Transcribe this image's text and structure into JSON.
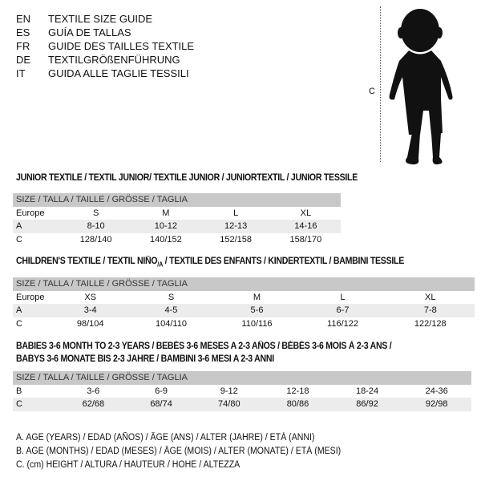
{
  "languages": [
    {
      "code": "EN",
      "label": "TEXTILE SIZE GUIDE"
    },
    {
      "code": "ES",
      "label": "GUÍA DE TALLAS"
    },
    {
      "code": "FR",
      "label": "GUIDE DES TAILLES TEXTILE"
    },
    {
      "code": "DE",
      "label": "TEXTILGRÖßENFÜHRUNG"
    },
    {
      "code": "IT",
      "label": "GUIDA ALLE TAGLIE TESSILI"
    }
  ],
  "figure": {
    "measure_label": "C",
    "icon": "child-silhouette-icon"
  },
  "size_header": "SIZE / TALLA / TAILLE / GRÖSSE / TAGLIA",
  "junior": {
    "title": "JUNIOR TEXTILE / TEXTIL JUNIOR/ TEXTILE JUNIOR / JUNIORTEXTIL / JUNIOR TESSILE",
    "rows": [
      [
        "Europe",
        "S",
        "M",
        "L",
        "XL"
      ],
      [
        "A",
        "8-10",
        "10-12",
        "12-13",
        "14-16"
      ],
      [
        "C",
        "128/140",
        "140/152",
        "152/158",
        "158/170"
      ]
    ]
  },
  "children": {
    "title_a": "CHILDREN'S TEXTILE / TEXTIL NIÑO",
    "title_sub": "/A",
    "title_b": " / TEXTILE DES ENFANTS / KINDERTEXTIL / BAMBINI TESSILE",
    "rows": [
      [
        "Europe",
        "XS",
        "S",
        "M",
        "L",
        "XL"
      ],
      [
        "A",
        "3-4",
        "4-5",
        "5-6",
        "6-7",
        "7-8"
      ],
      [
        "C",
        "98/104",
        "104/110",
        "110/116",
        "116/122",
        "122/128"
      ]
    ]
  },
  "babies": {
    "title_line1": "BABIES 3-6 MONTH TO 2-3 YEARS / BEBÉS 3-6 MESES A 2-3 AÑOS / BÉBÉS 3-6 MOIS À 2-3 ANS /",
    "title_line2": "BABYS 3-6 MONATE BIS 2-3 JAHRE / BAMBINI 3-6 MESI A 2-3 ANNI",
    "rows": [
      [
        "B",
        "3-6",
        "6-9",
        "9-12",
        "12-18",
        "18-24",
        "24-36"
      ],
      [
        "C",
        "62/68",
        "68/74",
        "74/80",
        "80/86",
        "86/92",
        "92/98"
      ]
    ]
  },
  "legend": [
    "A. AGE (YEARS) / EDAD (AÑOS) / ÂGE (ANS) / ALTER (JAHRE) / ETÀ (ANNI)",
    "B. AGE (MONTHS) / EDAD (MESES) / ÂGE (MOIS) / ALTER (MONATE) / ETÀ (MESI)",
    "C. (cm) HEIGHT / ALTURA / HAUTEUR / HÖHE / ALTEZZA"
  ]
}
